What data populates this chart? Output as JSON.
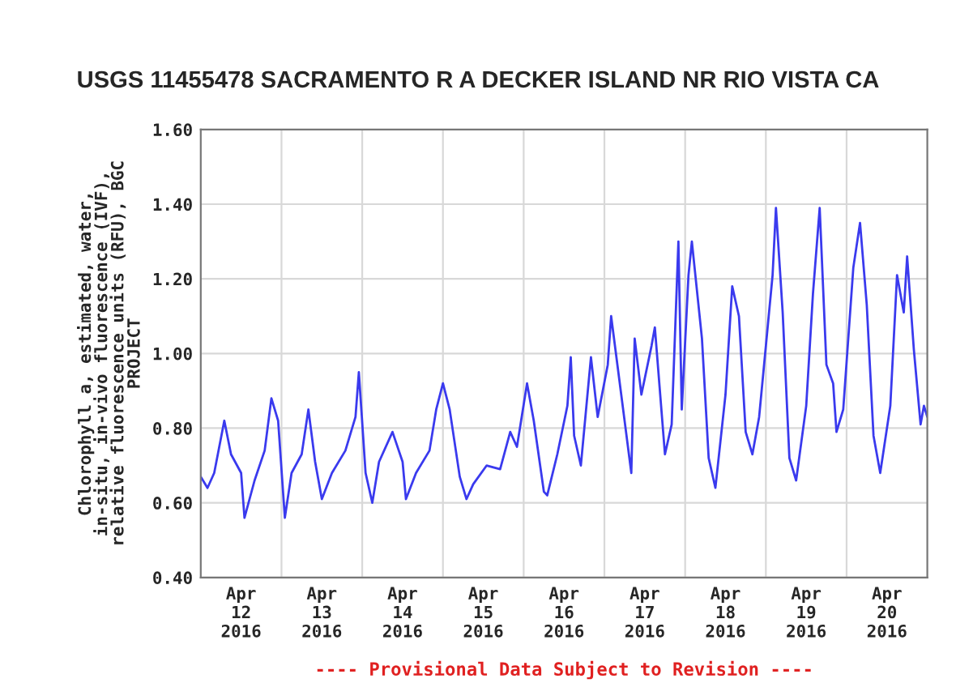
{
  "chart_data": {
    "type": "line",
    "title": "USGS 11455478 SACRAMENTO R A DECKER ISLAND NR RIO VISTA CA",
    "ylabel": "Chlorophyll a, estimated, water,\nin-situ, in-vivo fluorescence (IVF),\nrelative fluorescence units (RFU), BGC\nPROJECT",
    "annotations": [
      "---- Provisional Data Subject to Revision ----"
    ],
    "series": [
      {
        "color": "#3a3aee",
        "x": [
          "2016-04-12T00:00",
          "2016-04-12T02:00",
          "2016-04-12T04:00",
          "2016-04-12T07:00",
          "2016-04-12T09:00",
          "2016-04-12T12:00",
          "2016-04-12T13:00",
          "2016-04-12T16:00",
          "2016-04-12T19:00",
          "2016-04-12T21:00",
          "2016-04-12T23:00",
          "2016-04-13T01:00",
          "2016-04-13T03:00",
          "2016-04-13T06:00",
          "2016-04-13T08:00",
          "2016-04-13T10:00",
          "2016-04-13T12:00",
          "2016-04-13T15:00",
          "2016-04-13T19:00",
          "2016-04-13T22:00",
          "2016-04-13T23:00",
          "2016-04-14T01:00",
          "2016-04-14T03:00",
          "2016-04-14T05:00",
          "2016-04-14T09:00",
          "2016-04-14T12:00",
          "2016-04-14T13:00",
          "2016-04-14T16:00",
          "2016-04-14T20:00",
          "2016-04-14T22:00",
          "2016-04-15T00:00",
          "2016-04-15T02:00",
          "2016-04-15T05:00",
          "2016-04-15T07:00",
          "2016-04-15T09:00",
          "2016-04-15T13:00",
          "2016-04-15T17:00",
          "2016-04-15T20:00",
          "2016-04-15T22:00",
          "2016-04-16T01:00",
          "2016-04-16T03:00",
          "2016-04-16T06:00",
          "2016-04-16T07:00",
          "2016-04-16T10:00",
          "2016-04-16T13:00",
          "2016-04-16T14:00",
          "2016-04-16T15:00",
          "2016-04-16T17:00",
          "2016-04-16T20:00",
          "2016-04-16T22:00",
          "2016-04-17T01:00",
          "2016-04-17T02:00",
          "2016-04-17T05:00",
          "2016-04-17T08:00",
          "2016-04-17T09:00",
          "2016-04-17T11:00",
          "2016-04-17T14:00",
          "2016-04-17T15:00",
          "2016-04-17T18:00",
          "2016-04-17T20:00",
          "2016-04-17T22:00",
          "2016-04-17T23:00",
          "2016-04-18T01:00",
          "2016-04-18T02:00",
          "2016-04-18T05:00",
          "2016-04-18T07:00",
          "2016-04-18T09:00",
          "2016-04-18T12:00",
          "2016-04-18T14:00",
          "2016-04-18T16:00",
          "2016-04-18T18:00",
          "2016-04-18T20:00",
          "2016-04-18T22:00",
          "2016-04-19T02:00",
          "2016-04-19T03:00",
          "2016-04-19T05:00",
          "2016-04-19T07:00",
          "2016-04-19T09:00",
          "2016-04-19T12:00",
          "2016-04-19T14:00",
          "2016-04-19T16:00",
          "2016-04-19T18:00",
          "2016-04-19T20:00",
          "2016-04-19T21:00",
          "2016-04-19T23:00",
          "2016-04-20T02:00",
          "2016-04-20T04:00",
          "2016-04-20T06:00",
          "2016-04-20T08:00",
          "2016-04-20T10:00",
          "2016-04-20T13:00",
          "2016-04-20T15:00",
          "2016-04-20T17:00",
          "2016-04-20T18:00",
          "2016-04-20T20:00",
          "2016-04-20T22:00",
          "2016-04-20T23:00",
          "2016-04-21T00:00"
        ],
        "values": [
          0.67,
          0.64,
          0.68,
          0.82,
          0.73,
          0.68,
          0.56,
          0.66,
          0.74,
          0.88,
          0.82,
          0.56,
          0.68,
          0.73,
          0.85,
          0.71,
          0.61,
          0.68,
          0.74,
          0.83,
          0.95,
          0.68,
          0.6,
          0.71,
          0.79,
          0.71,
          0.61,
          0.68,
          0.74,
          0.85,
          0.92,
          0.85,
          0.67,
          0.61,
          0.65,
          0.7,
          0.69,
          0.79,
          0.75,
          0.92,
          0.82,
          0.63,
          0.62,
          0.73,
          0.86,
          0.99,
          0.78,
          0.7,
          0.99,
          0.83,
          0.97,
          1.1,
          0.89,
          0.68,
          1.04,
          0.89,
          1.02,
          1.07,
          0.73,
          0.81,
          1.3,
          0.85,
          1.21,
          1.3,
          1.04,
          0.72,
          0.64,
          0.89,
          1.18,
          1.1,
          0.79,
          0.73,
          0.83,
          1.21,
          1.39,
          1.11,
          0.72,
          0.66,
          0.86,
          1.16,
          1.39,
          0.97,
          0.92,
          0.79,
          0.85,
          1.23,
          1.35,
          1.13,
          0.78,
          0.68,
          0.86,
          1.21,
          1.11,
          1.26,
          1.01,
          0.81,
          0.86,
          0.83
        ]
      }
    ],
    "xlim": [
      "2016-04-12T00:00",
      "2016-04-21T00:00"
    ],
    "xticks": [
      {
        "value": "2016-04-12T12:00",
        "label": "Apr\n12\n2016"
      },
      {
        "value": "2016-04-13T12:00",
        "label": "Apr\n13\n2016"
      },
      {
        "value": "2016-04-14T12:00",
        "label": "Apr\n14\n2016"
      },
      {
        "value": "2016-04-15T12:00",
        "label": "Apr\n15\n2016"
      },
      {
        "value": "2016-04-16T12:00",
        "label": "Apr\n16\n2016"
      },
      {
        "value": "2016-04-17T12:00",
        "label": "Apr\n17\n2016"
      },
      {
        "value": "2016-04-18T12:00",
        "label": "Apr\n18\n2016"
      },
      {
        "value": "2016-04-19T12:00",
        "label": "Apr\n19\n2016"
      },
      {
        "value": "2016-04-20T12:00",
        "label": "Apr\n20\n2016"
      },
      {
        "value": "2016-04-13T00:00",
        "label": null
      },
      {
        "value": "2016-04-14T00:00",
        "label": null
      },
      {
        "value": "2016-04-15T00:00",
        "label": null
      },
      {
        "value": "2016-04-16T00:00",
        "label": null
      },
      {
        "value": "2016-04-17T00:00",
        "label": null
      },
      {
        "value": "2016-04-18T00:00",
        "label": null
      },
      {
        "value": "2016-04-19T00:00",
        "label": null
      },
      {
        "value": "2016-04-20T00:00",
        "label": null
      }
    ],
    "ylim": [
      0.4,
      1.6
    ],
    "yticks": [
      {
        "value": 0.4,
        "label": "0.40"
      },
      {
        "value": 0.6,
        "label": "0.60"
      },
      {
        "value": 0.8,
        "label": "0.80"
      },
      {
        "value": 1.0,
        "label": "1.00"
      },
      {
        "value": 1.2,
        "label": "1.20"
      },
      {
        "value": 1.4,
        "label": "1.40"
      },
      {
        "value": 1.6,
        "label": "1.60"
      }
    ],
    "grid": true
  }
}
